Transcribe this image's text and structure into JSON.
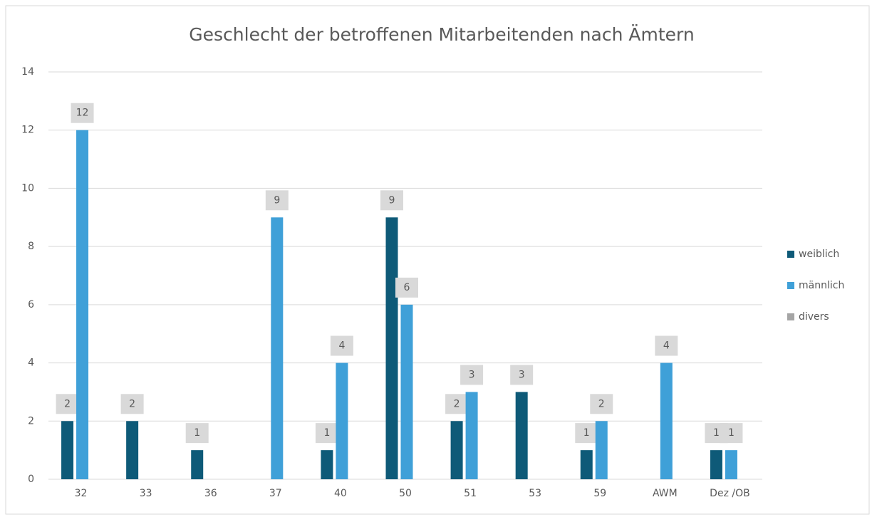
{
  "chart_data": {
    "type": "bar",
    "title": "Geschlecht der betroffenen Mitarbeitenden nach Ämtern",
    "categories": [
      "32",
      "33",
      "36",
      "37",
      "40",
      "50",
      "51",
      "53",
      "59",
      "AWM",
      "Dez /OB"
    ],
    "series": [
      {
        "name": "weiblich",
        "color": "#0e5a78",
        "values": [
          2,
          2,
          1,
          null,
          1,
          9,
          2,
          3,
          1,
          null,
          1
        ]
      },
      {
        "name": "männlich",
        "color": "#3fa0d8",
        "values": [
          12,
          null,
          null,
          9,
          4,
          6,
          3,
          null,
          2,
          4,
          1
        ]
      },
      {
        "name": "divers",
        "color": "#a5a5a5",
        "values": [
          null,
          null,
          null,
          null,
          null,
          null,
          null,
          null,
          null,
          null,
          null
        ]
      }
    ],
    "ylim": [
      0,
      14
    ],
    "yticks": [
      0,
      2,
      4,
      6,
      8,
      10,
      12,
      14
    ],
    "grid": true,
    "legend": "right"
  }
}
